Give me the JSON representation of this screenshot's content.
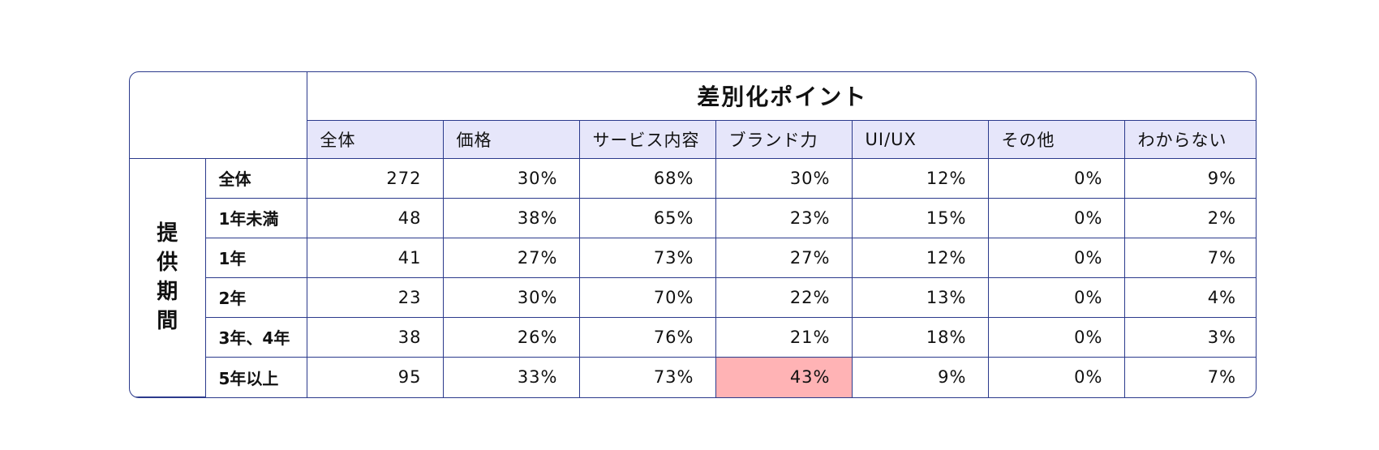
{
  "chart_data": {
    "type": "table",
    "title": "差別化ポイント",
    "side_label": [
      "提",
      "供",
      "期",
      "間"
    ],
    "columns": [
      "全体",
      "価格",
      "サービス内容",
      "ブランド力",
      "UI/UX",
      "その他",
      "わからない"
    ],
    "rows": [
      {
        "label": "全体",
        "values": [
          "272",
          "30%",
          "68%",
          "30%",
          "12%",
          "0%",
          "9%"
        ]
      },
      {
        "label": "1年未満",
        "values": [
          "48",
          "38%",
          "65%",
          "23%",
          "15%",
          "0%",
          "2%"
        ]
      },
      {
        "label": "1年",
        "values": [
          "41",
          "27%",
          "73%",
          "27%",
          "12%",
          "0%",
          "7%"
        ]
      },
      {
        "label": "2年",
        "values": [
          "23",
          "30%",
          "70%",
          "22%",
          "13%",
          "0%",
          "4%"
        ]
      },
      {
        "label": "3年、4年",
        "values": [
          "38",
          "26%",
          "76%",
          "21%",
          "18%",
          "0%",
          "3%"
        ]
      },
      {
        "label": "5年以上",
        "values": [
          "95",
          "33%",
          "73%",
          "43%",
          "9%",
          "0%",
          "7%"
        ]
      }
    ],
    "highlight": {
      "row": 5,
      "col": 3,
      "color": "#ffb3b5"
    },
    "colors": {
      "border": "#2b3a8c",
      "header_bg": "#e6e6fa"
    }
  }
}
